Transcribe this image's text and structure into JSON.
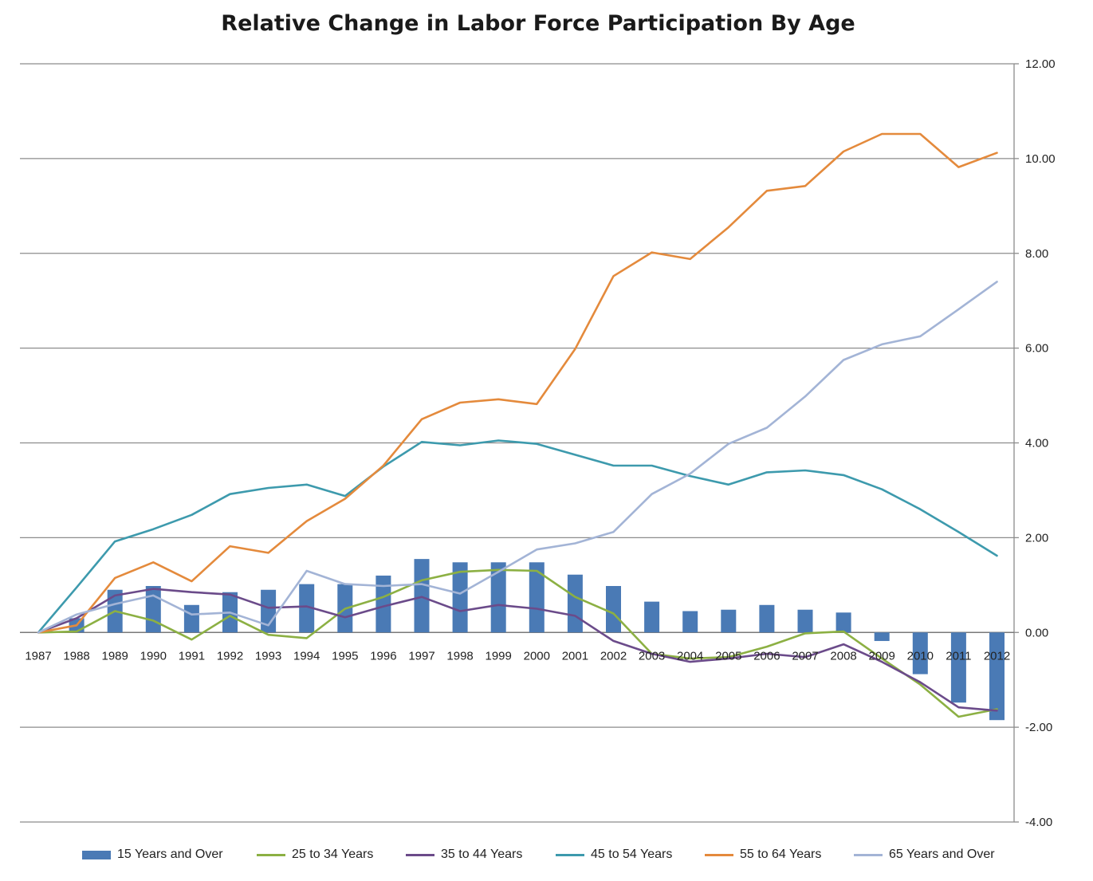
{
  "chart_data": {
    "type": "bar+line",
    "title": "Relative Change in Labor Force Participation By Age",
    "x_ticks": [
      "1987",
      "1988",
      "1989",
      "1990",
      "1991",
      "1992",
      "1993",
      "1994",
      "1995",
      "1996",
      "1997",
      "1998",
      "1999",
      "2000",
      "2001",
      "2002",
      "2003",
      "2004",
      "2005",
      "2006",
      "2007",
      "2008",
      "2009",
      "2010",
      "2011",
      "2012"
    ],
    "y_ticks": [
      "12.00",
      "10.00",
      "8.00",
      "6.00",
      "4.00",
      "2.00",
      "0.00",
      "-2.00",
      "-4.00"
    ],
    "ylim": [
      -4,
      12
    ],
    "y_axis_side": "right",
    "grid": true,
    "legend_position": "bottom",
    "series": [
      {
        "name": "15 Years and Over",
        "type": "bar",
        "color": "#4a7ab5",
        "values": [
          0,
          0.3,
          0.9,
          0.98,
          0.58,
          0.85,
          0.9,
          1.02,
          1.02,
          1.2,
          1.55,
          1.48,
          1.48,
          1.48,
          1.22,
          0.98,
          0.65,
          0.45,
          0.48,
          0.58,
          0.48,
          0.42,
          -0.18,
          -0.88,
          -1.48,
          -1.85
        ]
      },
      {
        "name": "25 to 34 Years",
        "type": "line",
        "color": "#8cb043",
        "values": [
          0,
          0.02,
          0.45,
          0.25,
          -0.15,
          0.35,
          -0.05,
          -0.12,
          0.5,
          0.75,
          1.1,
          1.28,
          1.32,
          1.3,
          0.75,
          0.4,
          -0.45,
          -0.55,
          -0.52,
          -0.3,
          -0.02,
          0.02,
          -0.55,
          -1.1,
          -1.78,
          -1.62
        ]
      },
      {
        "name": "35 to 44 Years",
        "type": "line",
        "color": "#6b4b8a",
        "values": [
          0,
          0.3,
          0.78,
          0.92,
          0.85,
          0.8,
          0.52,
          0.55,
          0.32,
          0.55,
          0.75,
          0.45,
          0.58,
          0.5,
          0.35,
          -0.18,
          -0.45,
          -0.62,
          -0.55,
          -0.45,
          -0.52,
          -0.25,
          -0.62,
          -1.05,
          -1.58,
          -1.65
        ]
      },
      {
        "name": "45 to 54 Years",
        "type": "line",
        "color": "#3d9aad",
        "values": [
          0,
          0.95,
          1.92,
          2.18,
          2.48,
          2.92,
          3.05,
          3.12,
          2.88,
          3.5,
          4.02,
          3.95,
          4.05,
          3.98,
          3.75,
          3.52,
          3.52,
          3.3,
          3.12,
          3.38,
          3.42,
          3.32,
          3.02,
          2.6,
          2.12,
          1.62
        ]
      },
      {
        "name": "55 to 64 Years",
        "type": "line",
        "color": "#e48a3c",
        "values": [
          0,
          0.15,
          1.15,
          1.48,
          1.08,
          1.82,
          1.68,
          2.35,
          2.82,
          3.52,
          4.5,
          4.85,
          4.92,
          4.82,
          5.98,
          7.52,
          8.02,
          7.88,
          8.55,
          9.32,
          9.42,
          10.15,
          10.52,
          10.52,
          9.82,
          10.12
        ]
      },
      {
        "name": "65 Years and Over",
        "type": "line",
        "color": "#a3b4d6",
        "values": [
          0,
          0.38,
          0.6,
          0.78,
          0.38,
          0.42,
          0.15,
          1.3,
          1.02,
          0.98,
          1.02,
          0.82,
          1.28,
          1.75,
          1.88,
          2.12,
          2.92,
          3.35,
          3.98,
          4.32,
          4.98,
          5.75,
          6.08,
          6.25,
          6.82,
          7.4
        ]
      }
    ]
  }
}
